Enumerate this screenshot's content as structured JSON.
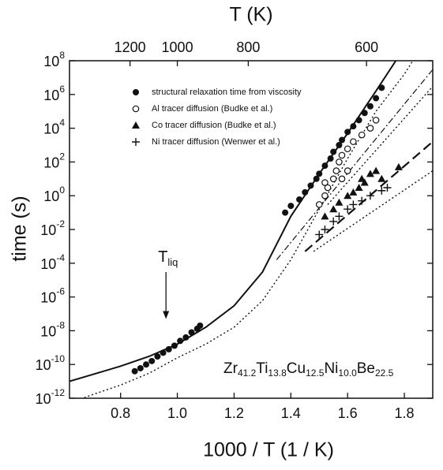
{
  "chart_data": {
    "type": "scatter",
    "xlabel": "1000 / T (1 / K)",
    "ylabel": "time (s)",
    "top_axis": {
      "label": "T (K)",
      "ticks": [
        1200,
        1000,
        800,
        600
      ]
    },
    "log_y": true,
    "xlim": [
      0.62,
      1.9
    ],
    "ylim": [
      1e-12,
      100000000.0
    ],
    "xticks": [
      0.8,
      {
        "value": 1,
        "label": "1.0"
      },
      1.2,
      1.4,
      1.6,
      1.8
    ],
    "yticks": [
      {
        "value": 1e-12,
        "label": "10",
        "exponent": "-12"
      },
      {
        "value": 1e-10,
        "label": "10",
        "exponent": "-10"
      },
      {
        "value": 1e-08,
        "label": "10",
        "exponent": "-8"
      },
      {
        "value": 1e-06,
        "label": "10",
        "exponent": "-6"
      },
      {
        "value": 0.0001,
        "label": "10",
        "exponent": "-4"
      },
      {
        "value": 0.01,
        "label": "10",
        "exponent": "-2"
      },
      {
        "value": 1,
        "label": "10",
        "exponent": "0"
      },
      {
        "value": 100.0,
        "label": "10",
        "exponent": "2"
      },
      {
        "value": 10000.0,
        "label": "10",
        "exponent": "4"
      },
      {
        "value": 1000000.0,
        "label": "10",
        "exponent": "6"
      },
      {
        "value": 100000000.0,
        "label": "10",
        "exponent": "8"
      }
    ],
    "series": [
      {
        "name": "structural relaxation time from viscosity",
        "marker": "filled-circle",
        "color": "#111",
        "x": [
          0.85,
          0.87,
          0.89,
          0.91,
          0.93,
          0.95,
          0.97,
          0.99,
          1.01,
          1.03,
          1.05,
          1.07,
          1.08,
          1.38,
          1.4,
          1.43,
          1.45,
          1.47,
          1.49,
          1.5,
          1.52,
          1.54,
          1.55,
          1.57,
          1.58,
          1.6,
          1.62,
          1.64,
          1.66,
          1.68,
          1.7,
          1.72
        ],
        "values": [
          4e-11,
          6e-11,
          1e-10,
          1.6e-10,
          3e-10,
          5e-10,
          8e-10,
          1.3e-09,
          2.5e-09,
          4e-09,
          8e-09,
          1.3e-08,
          2e-08,
          0.1,
          0.25,
          0.6,
          1.6,
          4,
          10,
          20,
          60,
          160,
          400,
          1000,
          2000,
          6000,
          13000,
          30000,
          80000,
          200000,
          600000,
          2500000
        ]
      },
      {
        "name": "Al tracer diffusion (Budke et al.)",
        "marker": "open-circle",
        "color": "#111",
        "x": [
          1.5,
          1.52,
          1.53,
          1.55,
          1.56,
          1.57,
          1.58,
          1.6,
          1.62,
          1.65,
          1.68,
          1.7,
          1.52,
          1.58,
          1.6
        ],
        "values": [
          0.3,
          1,
          3,
          10,
          30,
          100,
          250,
          600,
          1600,
          4000,
          10000,
          30000,
          6,
          10,
          30
        ]
      },
      {
        "name": "Co tracer diffusion (Budke et al.)",
        "marker": "triangle",
        "color": "#111",
        "x": [
          1.52,
          1.55,
          1.57,
          1.6,
          1.62,
          1.64,
          1.66,
          1.68,
          1.7,
          1.78,
          1.65,
          1.72
        ],
        "values": [
          0.06,
          0.16,
          0.4,
          1,
          1.6,
          3,
          6,
          20,
          30,
          50,
          10,
          10
        ]
      },
      {
        "name": "Ni tracer diffusion (Wenwer et al.)",
        "marker": "cross",
        "color": "#111",
        "x": [
          1.5,
          1.52,
          1.55,
          1.57,
          1.6,
          1.62,
          1.65,
          1.68,
          1.72,
          1.74
        ],
        "values": [
          0.005,
          0.01,
          0.03,
          0.06,
          0.16,
          0.3,
          0.5,
          1,
          2,
          3
        ]
      }
    ],
    "curves": [
      {
        "style": "solid",
        "x": [
          0.62,
          0.7,
          0.8,
          0.9,
          1.0,
          1.1,
          1.2,
          1.3,
          1.4,
          1.5,
          1.6,
          1.7,
          1.77
        ],
        "values": [
          1e-11,
          2.5e-11,
          8e-11,
          3e-10,
          1.6e-09,
          1.6e-08,
          3e-07,
          3e-05,
          0.06,
          20,
          5000,
          1600000,
          100000000.0
        ]
      },
      {
        "style": "dotted",
        "x": [
          0.62,
          0.7,
          0.8,
          0.9,
          1.0,
          1.1,
          1.2,
          1.3,
          1.4,
          1.5,
          1.6,
          1.7,
          1.8,
          1.83
        ],
        "values": [
          5e-13,
          1.6e-12,
          6e-12,
          3e-11,
          2.5e-10,
          1.6e-09,
          1.6e-08,
          6e-07,
          0.00016,
          0.16,
          160,
          100000,
          16000000,
          100000000.0
        ]
      },
      {
        "style": "dashdot",
        "x": [
          1.35,
          1.9
        ],
        "values": [
          0.00016,
          30000000
        ]
      },
      {
        "style": "dotted",
        "x": [
          1.53,
          1.9
        ],
        "values": [
          0.3,
          3000000
        ]
      },
      {
        "style": "dashed",
        "x": [
          1.45,
          1.9
        ],
        "values": [
          0.0005,
          1600
        ]
      },
      {
        "style": "dotted",
        "x": [
          1.48,
          1.9
        ],
        "values": [
          0.0005,
          30
        ]
      }
    ],
    "annotations": [
      {
        "text": "T",
        "sub": "liq",
        "x": 0.96,
        "y_from": 3e-05,
        "y_to": 5e-08
      }
    ],
    "formula": [
      [
        "Zr",
        "41.2"
      ],
      [
        "Ti",
        "13.8"
      ],
      [
        "Cu",
        "12.5"
      ],
      [
        "Ni",
        "10.0"
      ],
      [
        "Be",
        "22.5"
      ]
    ]
  }
}
